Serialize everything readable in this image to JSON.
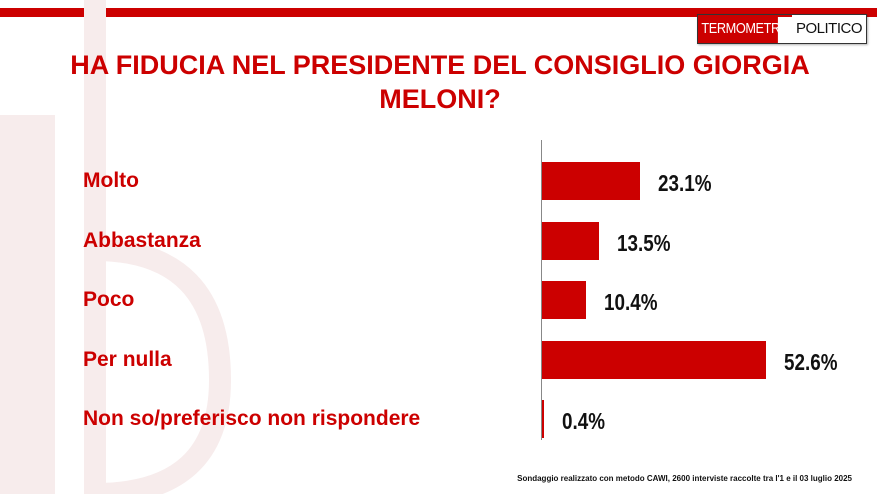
{
  "brand": {
    "part1": "TERMOMETRO",
    "part2": "POLITICO",
    "accent": "#cc0000"
  },
  "chart_data": {
    "type": "bar",
    "orientation": "horizontal",
    "title": "HA FIDUCIA NEL PRESIDENTE DEL CONSIGLIO GIORGIA MELONI?",
    "categories": [
      "Molto",
      "Abbastanza",
      "Poco",
      "Per nulla",
      "Non so/preferisco non rispondere"
    ],
    "values": [
      23.1,
      13.5,
      10.4,
      52.6,
      0.4
    ],
    "value_labels": [
      "23.1%",
      "13.5%",
      "10.4%",
      "52.6%",
      "0.4%"
    ],
    "unit": "%",
    "xlim": [
      0,
      52.6
    ],
    "grid": false,
    "bar_color": "#cc0000"
  },
  "footnote": "Sondaggio realizzato con metodo CAWI, 2600 interviste raccolte tra l'1 e il 03 luglio 2025"
}
